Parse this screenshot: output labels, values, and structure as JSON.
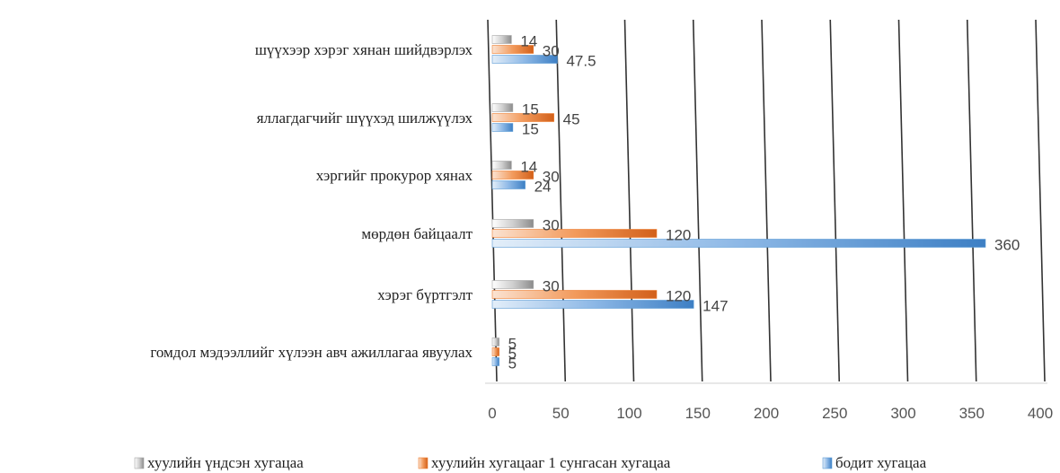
{
  "chart_data": {
    "type": "bar",
    "orientation": "horizontal",
    "categories": [
      "шүүхээр хэрэг хянан шийдвэрлэх",
      "яллагдагчийг шүүхэд шилжүүлэх",
      "хэргийг прокурор хянах",
      "мөрдөн байцаалт",
      "хэрэг бүртгэлт",
      "гомдол мэдээллийг хүлээн авч ажиллагаа явуулах"
    ],
    "series": [
      {
        "name": "хуулийн үндсэн хугацаа",
        "color": "#a6a6a6",
        "values": [
          14,
          15,
          14,
          30,
          30,
          5
        ]
      },
      {
        "name": "хуулийн хугацааг 1 сунгасан хугацаа",
        "color": "#ed7d31",
        "values": [
          30,
          45,
          30,
          120,
          120,
          5
        ]
      },
      {
        "name": "бодит хугацаа",
        "color": "#5b9bd5",
        "values": [
          47.5,
          15,
          24,
          360,
          147,
          5
        ]
      }
    ],
    "xlim": [
      0,
      400
    ],
    "xticks": [
      0,
      50,
      100,
      150,
      200,
      250,
      300,
      350,
      400
    ],
    "grid": true,
    "legend_position": "bottom"
  }
}
